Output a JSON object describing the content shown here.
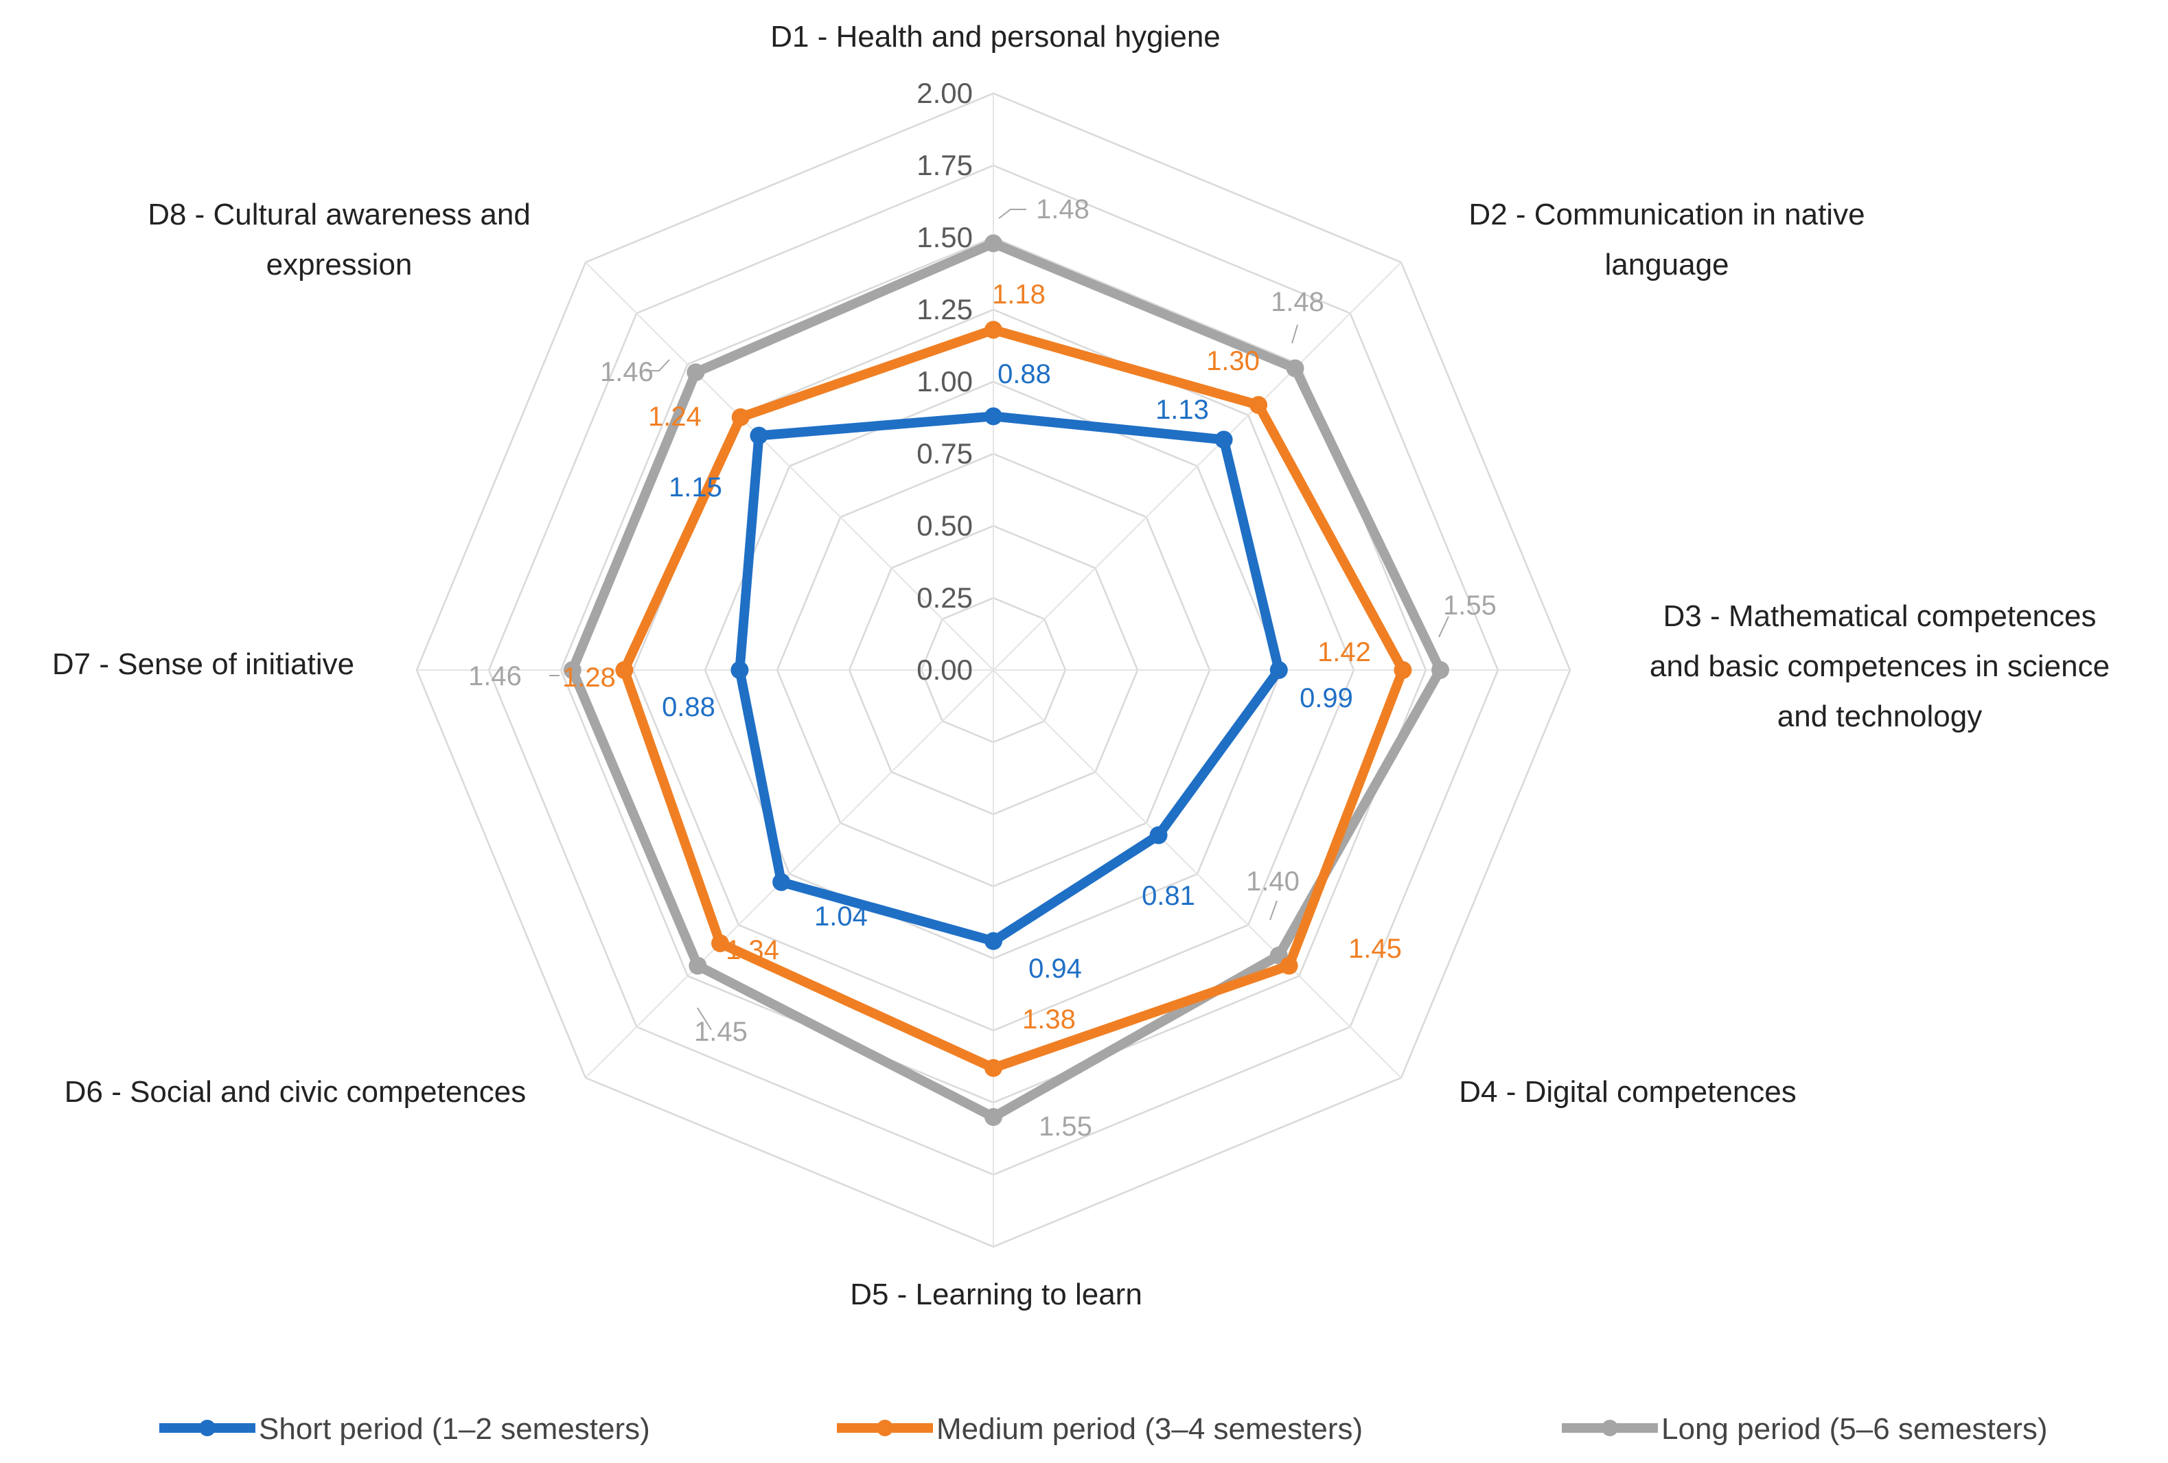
{
  "chart_data": {
    "type": "radar",
    "title": "",
    "categories": [
      "D1 - Health and personal hygiene",
      "D2 - Communication in native language",
      "D3 - Mathematical competences and basic competences in science and technology",
      "D4 - Digital competences",
      "D5 - Learning to learn",
      "D6 - Social and civic competences",
      "D7 - Sense of initiative",
      "D8 - Cultural awareness and expression"
    ],
    "category_lines": [
      [
        "D1 - Health and personal hygiene"
      ],
      [
        "D2 - Communication in native",
        "language"
      ],
      [
        "D3 - Mathematical competences",
        "and basic competences in science",
        "and technology"
      ],
      [
        "D4 - Digital competences"
      ],
      [
        "D5 - Learning to learn"
      ],
      [
        "D6 - Social and civic competences"
      ],
      [
        "D7 - Sense of initiative"
      ],
      [
        "D8 - Cultural awareness and",
        "expression"
      ]
    ],
    "rmin": 0,
    "rmax": 2,
    "ticks": [
      "0.00",
      "0.25",
      "0.50",
      "0.75",
      "1.00",
      "1.25",
      "1.50",
      "1.75",
      "2.00"
    ],
    "series": [
      {
        "name": "Short period (1–2 semesters)",
        "color": "#1F6FC5",
        "values": [
          0.88,
          1.13,
          0.99,
          0.81,
          0.94,
          1.04,
          0.88,
          1.15
        ],
        "labels": [
          "0.88",
          "1.13",
          "0.99",
          "0.81",
          "0.94",
          "1.04",
          "0.88",
          "1.15"
        ]
      },
      {
        "name": "Medium period (3–4 semesters)",
        "color": "#F07F23",
        "values": [
          1.18,
          1.3,
          1.42,
          1.45,
          1.38,
          1.34,
          1.28,
          1.24
        ],
        "labels": [
          "1.18",
          "1.30",
          "1.42",
          "1.45",
          "1.38",
          "1.34",
          "1.28",
          "1.24"
        ]
      },
      {
        "name": "Long period (5–6 semesters)",
        "color": "#A5A5A5",
        "values": [
          1.48,
          1.48,
          1.55,
          1.4,
          1.55,
          1.45,
          1.46,
          1.46
        ],
        "labels": [
          "1.48",
          "1.48",
          "1.55",
          "1.40",
          "1.55",
          "1.45",
          "1.46",
          "1.46"
        ]
      }
    ],
    "grid": true,
    "legend_position": "bottom"
  }
}
